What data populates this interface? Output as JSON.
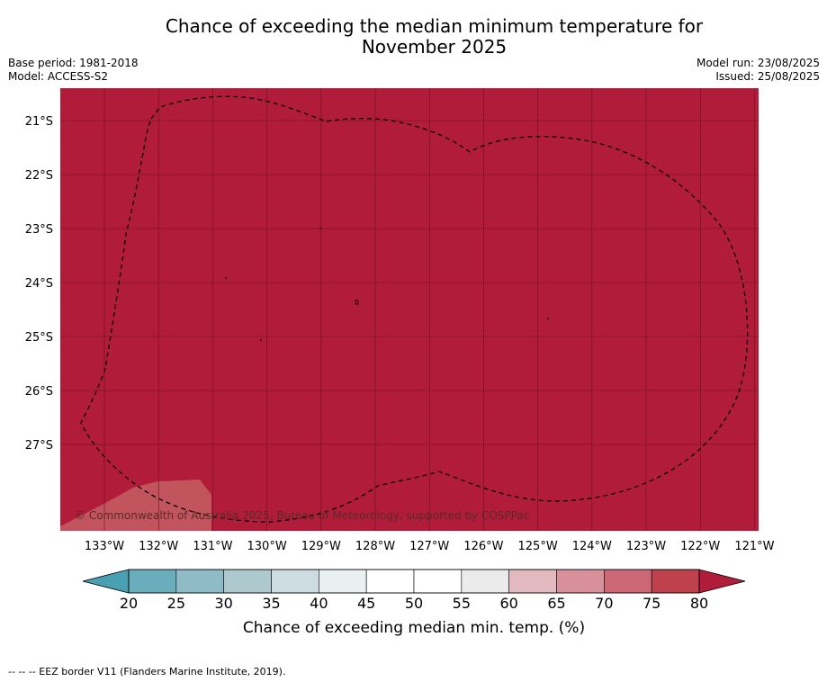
{
  "title_line1": "Chance of exceeding the median minimum temperature for",
  "title_line2": "November 2025",
  "meta": {
    "base_period": "Base period: 1981-2018",
    "model": "Model: ACCESS-S2",
    "model_run": "Model run: 23/08/2025",
    "issued": "Issued: 25/08/2025"
  },
  "map": {
    "credit": "© Commonwealth of Australia 2025, Bureau of Meteorology, supported by COSPPac",
    "fill_color": "#b11c3a",
    "minor_fill_color": "#c2545e",
    "lat_ticks": [
      "21°S",
      "22°S",
      "23°S",
      "24°S",
      "25°S",
      "26°S",
      "27°S"
    ],
    "lon_ticks": [
      "133°W",
      "132°W",
      "131°W",
      "130°W",
      "129°W",
      "128°W",
      "127°W",
      "126°W",
      "125°W",
      "124°W",
      "123°W",
      "122°W",
      "121°W"
    ]
  },
  "colorbar": {
    "title": "Chance of exceeding median min. temp. (%)",
    "ticks": [
      "20",
      "25",
      "30",
      "35",
      "40",
      "45",
      "50",
      "55",
      "60",
      "65",
      "70",
      "75",
      "80"
    ],
    "colors": [
      "#6aaebd",
      "#8fbbc6",
      "#adc9ce",
      "#ccdce0",
      "#eaf0f2",
      "#ffffff",
      "#ffffff",
      "#ebebeb",
      "#e2b9bf",
      "#d8919a",
      "#cc6876",
      "#c0414e"
    ],
    "under_color": "#4aa0b3",
    "over_color": "#b11c3a"
  },
  "footnote": "--  --  -- EEZ border V11 (Flanders Marine Institute, 2019)."
}
